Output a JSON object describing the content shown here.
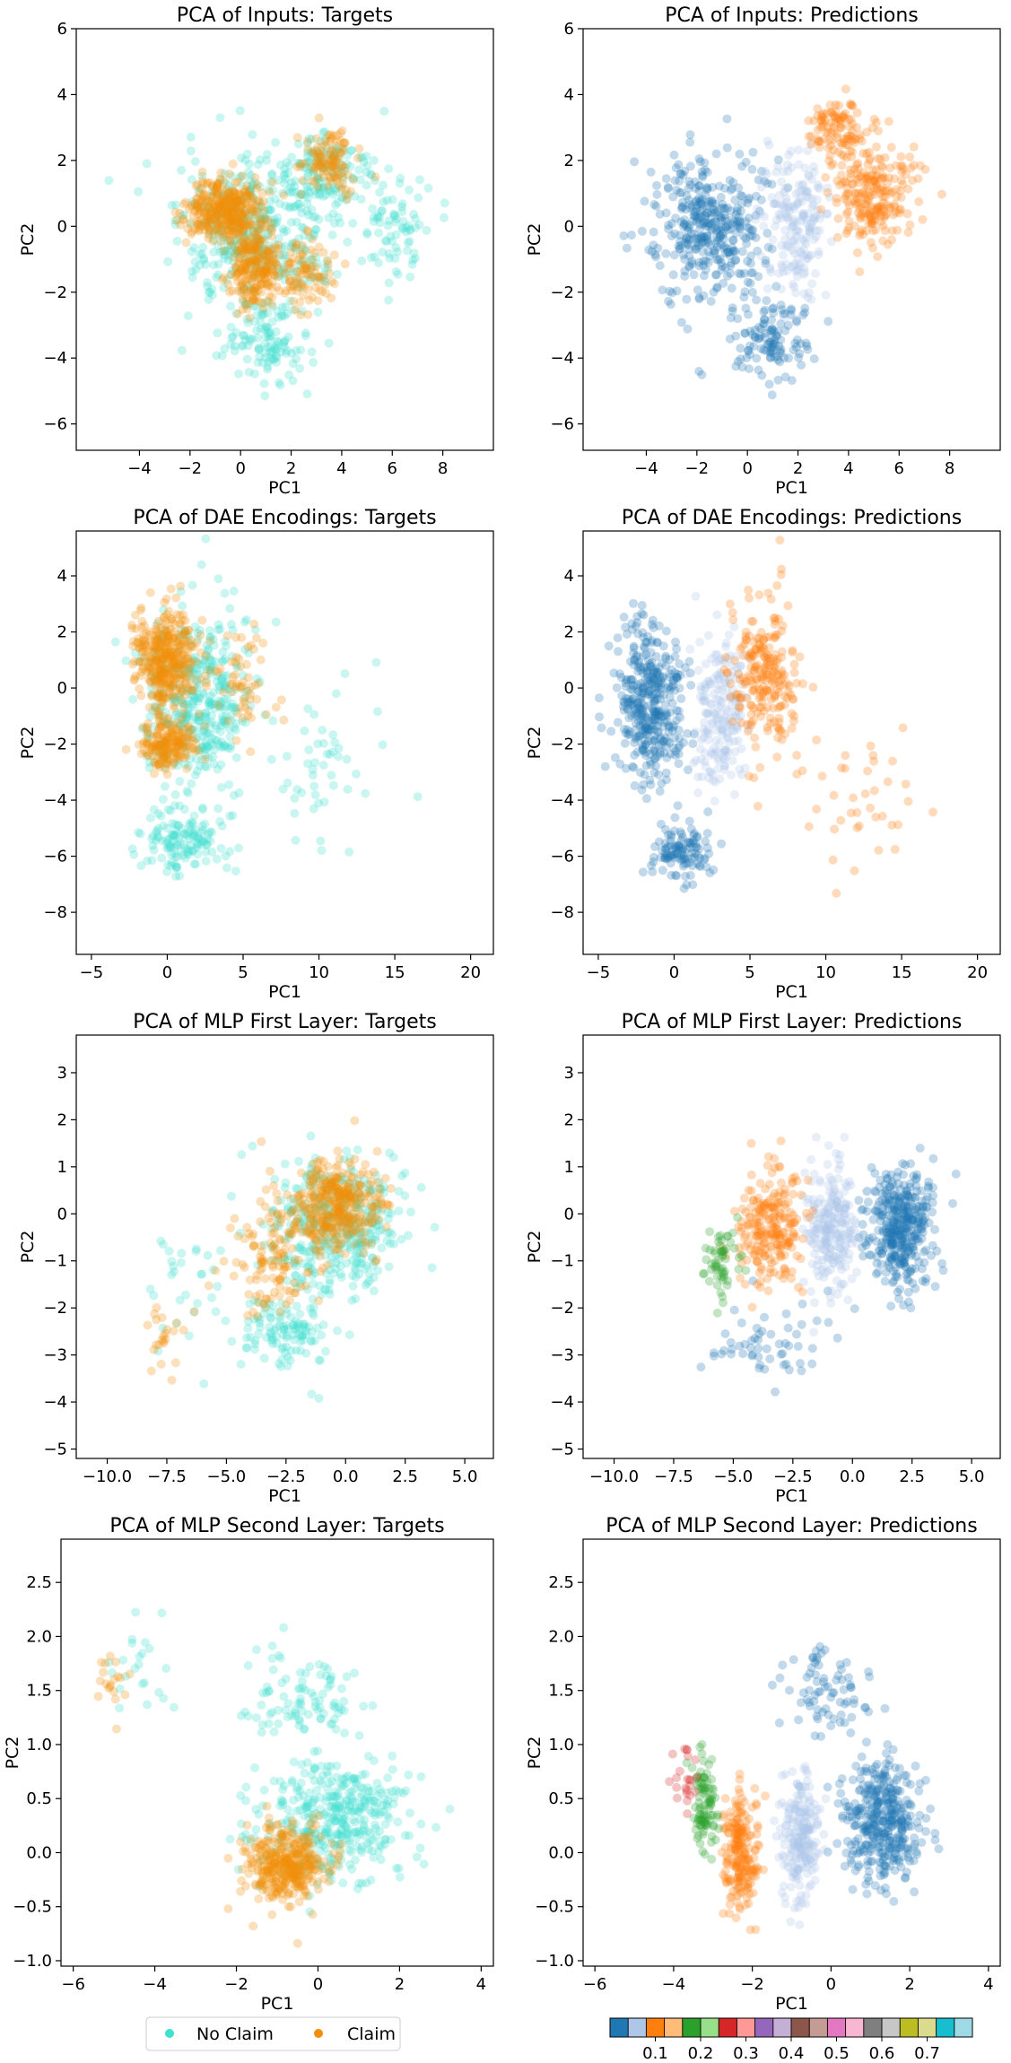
{
  "colors": {
    "no_claim": "#40e0d0",
    "claim": "#f28e0c",
    "tab20": [
      "#1f77b4",
      "#aec7e8",
      "#ff7f0e",
      "#ffbb78",
      "#2ca02c",
      "#98df8a",
      "#d62728",
      "#ff9896",
      "#9467bd",
      "#c5b0d5",
      "#8c564b",
      "#c49c94",
      "#e377c2",
      "#f7b6d2",
      "#7f7f7f",
      "#c7c7c7",
      "#bcbd22",
      "#dbdb8d",
      "#17becf",
      "#9edae5"
    ]
  },
  "legend": {
    "items": [
      "No Claim",
      "Claim"
    ]
  },
  "colorbar": {
    "ticks": [
      "0.1",
      "0.2",
      "0.3",
      "0.4",
      "0.5",
      "0.6",
      "0.7"
    ]
  },
  "chart_data": [
    {
      "type": "scatter",
      "title": "PCA of Inputs: Targets",
      "xlabel": "PC1",
      "ylabel": "PC2",
      "xlim": [
        -6.5,
        10
      ],
      "ylim": [
        -6.8,
        6
      ],
      "xticks": [
        -4,
        -2,
        0,
        2,
        4,
        6,
        8
      ],
      "yticks": [
        -6,
        -4,
        -2,
        0,
        2,
        4,
        6
      ],
      "series": [
        {
          "name": "No Claim",
          "color_key": "no_claim",
          "clusters": [
            {
              "center": [
                0.5,
                -0.3
              ],
              "spread": [
                2.6,
                2.1
              ],
              "weight": 1.0
            },
            {
              "center": [
                3.5,
                1.5
              ],
              "spread": [
                1.6,
                1.3
              ],
              "weight": 0.35
            },
            {
              "center": [
                1.0,
                -3.5
              ],
              "spread": [
                1.6,
                1.2
              ],
              "weight": 0.3
            },
            {
              "center": [
                6.0,
                0.0
              ],
              "spread": [
                1.2,
                1.4
              ],
              "weight": 0.2
            }
          ]
        },
        {
          "name": "Claim",
          "color_key": "claim",
          "clusters": [
            {
              "center": [
                -0.5,
                0.5
              ],
              "spread": [
                1.3,
                0.9
              ],
              "weight": 1.0
            },
            {
              "center": [
                0.5,
                -1.2
              ],
              "spread": [
                0.9,
                1.1
              ],
              "weight": 0.6
            },
            {
              "center": [
                3.5,
                2.0
              ],
              "spread": [
                1.0,
                1.0
              ],
              "weight": 0.3
            },
            {
              "center": [
                2.5,
                -1.5
              ],
              "spread": [
                1.2,
                1.2
              ],
              "weight": 0.25
            }
          ]
        }
      ]
    },
    {
      "type": "scatter",
      "title": "PCA of Inputs: Predictions",
      "xlabel": "PC1",
      "ylabel": "PC2",
      "xlim": [
        -6.5,
        10
      ],
      "ylim": [
        -6.8,
        6
      ],
      "xticks": [
        -4,
        -2,
        0,
        2,
        4,
        6,
        8
      ],
      "yticks": [
        -6,
        -4,
        -2,
        0,
        2,
        4,
        6
      ],
      "series": [
        {
          "name": "",
          "color_index": 0,
          "clusters": [
            {
              "center": [
                -1.5,
                0.0
              ],
              "spread": [
                2.0,
                2.0
              ],
              "weight": 1.0
            },
            {
              "center": [
                1.0,
                -3.5
              ],
              "spread": [
                1.2,
                1.1
              ],
              "weight": 0.3
            }
          ]
        },
        {
          "name": "",
          "color_index": 1,
          "clusters": [
            {
              "center": [
                2.0,
                0.0
              ],
              "spread": [
                1.2,
                2.0
              ],
              "weight": 0.5
            }
          ]
        },
        {
          "name": "",
          "color_index": 2,
          "clusters": [
            {
              "center": [
                5.0,
                1.0
              ],
              "spread": [
                1.6,
                1.4
              ],
              "weight": 0.6
            },
            {
              "center": [
                3.5,
                3.0
              ],
              "spread": [
                1.0,
                0.8
              ],
              "weight": 0.25
            }
          ]
        }
      ]
    },
    {
      "type": "scatter",
      "title": "PCA of DAE Encodings: Targets",
      "xlabel": "PC1",
      "ylabel": "PC2",
      "xlim": [
        -6,
        21.5
      ],
      "ylim": [
        -9.5,
        5.6
      ],
      "xticks": [
        -5,
        0,
        5,
        10,
        15,
        20
      ],
      "yticks": [
        -8,
        -6,
        -4,
        -2,
        0,
        2,
        4
      ],
      "series": [
        {
          "name": "No Claim",
          "color_key": "no_claim",
          "clusters": [
            {
              "center": [
                2.0,
                -0.5
              ],
              "spread": [
                3.2,
                2.8
              ],
              "weight": 1.0
            },
            {
              "center": [
                1.0,
                -5.5
              ],
              "spread": [
                2.5,
                1.0
              ],
              "weight": 0.35
            },
            {
              "center": [
                10.0,
                -3.0
              ],
              "spread": [
                3.0,
                2.5
              ],
              "weight": 0.12
            }
          ]
        },
        {
          "name": "Claim",
          "color_key": "claim",
          "clusters": [
            {
              "center": [
                0.0,
                1.0
              ],
              "spread": [
                1.8,
                1.6
              ],
              "weight": 1.0
            },
            {
              "center": [
                0.0,
                -2.0
              ],
              "spread": [
                1.6,
                0.8
              ],
              "weight": 0.5
            },
            {
              "center": [
                5.0,
                0.0
              ],
              "spread": [
                2.0,
                2.0
              ],
              "weight": 0.15
            }
          ]
        }
      ]
    },
    {
      "type": "scatter",
      "title": "PCA of DAE Encodings: Predictions",
      "xlabel": "PC1",
      "ylabel": "PC2",
      "xlim": [
        -6,
        21.5
      ],
      "ylim": [
        -9.5,
        5.6
      ],
      "xticks": [
        -5,
        0,
        5,
        10,
        15,
        20
      ],
      "yticks": [
        -8,
        -6,
        -4,
        -2,
        0,
        2,
        4
      ],
      "series": [
        {
          "name": "",
          "color_index": 0,
          "clusters": [
            {
              "center": [
                -1.5,
                -0.5
              ],
              "spread": [
                2.0,
                2.6
              ],
              "weight": 1.0
            },
            {
              "center": [
                0.5,
                -5.8
              ],
              "spread": [
                2.0,
                0.9
              ],
              "weight": 0.3
            }
          ]
        },
        {
          "name": "",
          "color_index": 1,
          "clusters": [
            {
              "center": [
                3.0,
                -1.0
              ],
              "spread": [
                1.6,
                2.6
              ],
              "weight": 0.5
            }
          ]
        },
        {
          "name": "",
          "color_index": 2,
          "clusters": [
            {
              "center": [
                6.0,
                0.5
              ],
              "spread": [
                2.2,
                2.4
              ],
              "weight": 0.6
            },
            {
              "center": [
                12.0,
                -4.0
              ],
              "spread": [
                3.0,
                2.0
              ],
              "weight": 0.1
            }
          ]
        }
      ]
    },
    {
      "type": "scatter",
      "title": "PCA of MLP First Layer: Targets",
      "xlabel": "PC1",
      "ylabel": "PC2",
      "xlim": [
        -11.3,
        6.2
      ],
      "ylim": [
        -5.2,
        3.8
      ],
      "xticks": [
        -10.0,
        -7.5,
        -5.0,
        -2.5,
        0.0,
        2.5,
        5.0
      ],
      "yticks": [
        -5,
        -4,
        -3,
        -2,
        -1,
        0,
        1,
        2,
        3
      ],
      "series": [
        {
          "name": "No Claim",
          "color_key": "no_claim",
          "clusters": [
            {
              "center": [
                -0.5,
                -0.3
              ],
              "spread": [
                2.6,
                1.3
              ],
              "weight": 1.0
            },
            {
              "center": [
                -2.5,
                -2.5
              ],
              "spread": [
                1.8,
                0.7
              ],
              "weight": 0.3
            },
            {
              "center": [
                -6.5,
                -1.5
              ],
              "spread": [
                1.5,
                1.2
              ],
              "weight": 0.08
            }
          ]
        },
        {
          "name": "Claim",
          "color_key": "claim",
          "clusters": [
            {
              "center": [
                -0.5,
                0.2
              ],
              "spread": [
                1.8,
                0.9
              ],
              "weight": 1.0
            },
            {
              "center": [
                -3.0,
                -1.0
              ],
              "spread": [
                1.5,
                1.0
              ],
              "weight": 0.3
            },
            {
              "center": [
                -7.5,
                -2.5
              ],
              "spread": [
                1.2,
                0.7
              ],
              "weight": 0.06
            }
          ]
        }
      ]
    },
    {
      "type": "scatter",
      "title": "PCA of MLP First Layer: Predictions",
      "xlabel": "PC1",
      "ylabel": "PC2",
      "xlim": [
        -11.3,
        6.2
      ],
      "ylim": [
        -5.2,
        3.8
      ],
      "xticks": [
        -10.0,
        -7.5,
        -5.0,
        -2.5,
        0.0,
        2.5,
        5.0
      ],
      "yticks": [
        -5,
        -4,
        -3,
        -2,
        -1,
        0,
        1,
        2,
        3
      ],
      "series": [
        {
          "name": "",
          "color_index": 0,
          "clusters": [
            {
              "center": [
                2.0,
                -0.3
              ],
              "spread": [
                1.3,
                1.2
              ],
              "weight": 1.0
            },
            {
              "center": [
                -4.0,
                -2.8
              ],
              "spread": [
                3.0,
                0.8
              ],
              "weight": 0.15
            }
          ]
        },
        {
          "name": "",
          "color_index": 1,
          "clusters": [
            {
              "center": [
                -1.0,
                -0.3
              ],
              "spread": [
                1.0,
                1.2
              ],
              "weight": 0.6
            }
          ]
        },
        {
          "name": "",
          "color_index": 2,
          "clusters": [
            {
              "center": [
                -3.5,
                -0.3
              ],
              "spread": [
                1.2,
                1.1
              ],
              "weight": 0.6
            }
          ]
        },
        {
          "name": "",
          "color_index": 4,
          "clusters": [
            {
              "center": [
                -5.5,
                -1.0
              ],
              "spread": [
                0.8,
                0.8
              ],
              "weight": 0.15
            }
          ]
        }
      ]
    },
    {
      "type": "scatter",
      "title": "PCA of MLP Second Layer: Targets",
      "xlabel": "PC1",
      "ylabel": "PC2",
      "xlim": [
        -6.3,
        4.3
      ],
      "ylim": [
        -1.05,
        2.9
      ],
      "xticks": [
        -6,
        -4,
        -2,
        0,
        2,
        4
      ],
      "yticks": [
        -1.0,
        -0.5,
        0.0,
        0.5,
        1.0,
        1.5,
        2.0,
        2.5
      ],
      "series": [
        {
          "name": "No Claim",
          "color_key": "no_claim",
          "clusters": [
            {
              "center": [
                0.5,
                0.3
              ],
              "spread": [
                1.6,
                0.5
              ],
              "weight": 1.0
            },
            {
              "center": [
                -0.5,
                1.4
              ],
              "spread": [
                1.2,
                0.4
              ],
              "weight": 0.25
            },
            {
              "center": [
                -4.5,
                1.8
              ],
              "spread": [
                0.7,
                0.4
              ],
              "weight": 0.06
            }
          ]
        },
        {
          "name": "Claim",
          "color_key": "claim",
          "clusters": [
            {
              "center": [
                -0.8,
                -0.1
              ],
              "spread": [
                0.9,
                0.3
              ],
              "weight": 1.0
            },
            {
              "center": [
                -5.0,
                1.5
              ],
              "spread": [
                0.5,
                0.3
              ],
              "weight": 0.05
            }
          ]
        }
      ]
    },
    {
      "type": "scatter",
      "title": "PCA of MLP Second Layer: Predictions",
      "xlabel": "PC1",
      "ylabel": "PC2",
      "xlim": [
        -6.3,
        4.3
      ],
      "ylim": [
        -1.05,
        2.9
      ],
      "xticks": [
        -6,
        -4,
        -2,
        0,
        2,
        4
      ],
      "yticks": [
        -1.0,
        -0.5,
        0.0,
        0.5,
        1.0,
        1.5,
        2.0,
        2.5
      ],
      "series": [
        {
          "name": "",
          "color_index": 0,
          "clusters": [
            {
              "center": [
                1.3,
                0.3
              ],
              "spread": [
                0.9,
                0.5
              ],
              "weight": 1.0
            },
            {
              "center": [
                0.0,
                1.5
              ],
              "spread": [
                1.0,
                0.4
              ],
              "weight": 0.2
            }
          ]
        },
        {
          "name": "",
          "color_index": 1,
          "clusters": [
            {
              "center": [
                -0.8,
                0.1
              ],
              "spread": [
                0.45,
                0.5
              ],
              "weight": 0.55
            }
          ]
        },
        {
          "name": "",
          "color_index": 2,
          "clusters": [
            {
              "center": [
                -2.3,
                0.0
              ],
              "spread": [
                0.4,
                0.5
              ],
              "weight": 0.55
            }
          ]
        },
        {
          "name": "",
          "color_index": 4,
          "clusters": [
            {
              "center": [
                -3.2,
                0.4
              ],
              "spread": [
                0.3,
                0.4
              ],
              "weight": 0.25
            }
          ]
        },
        {
          "name": "",
          "color_index": 6,
          "clusters": [
            {
              "center": [
                -3.7,
                0.7
              ],
              "spread": [
                0.3,
                0.3
              ],
              "weight": 0.06
            }
          ]
        }
      ]
    }
  ]
}
